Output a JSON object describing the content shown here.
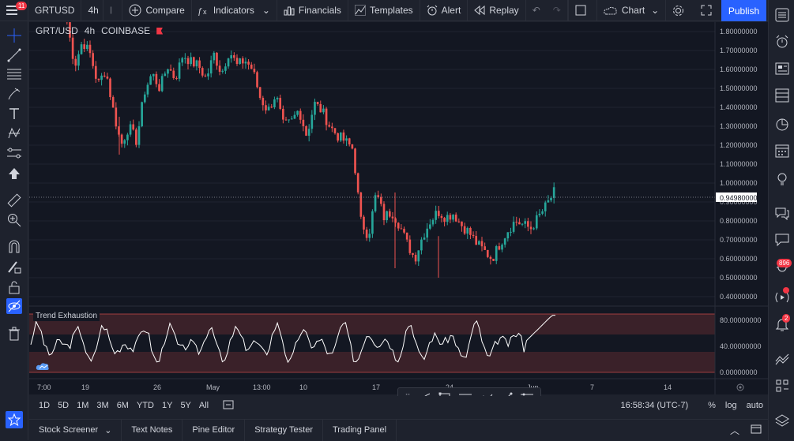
{
  "topbar": {
    "symbol": "GRTUSD",
    "interval": "4h",
    "compare_label": "Compare",
    "indicators_label": "Indicators",
    "financials_label": "Financials",
    "templates_label": "Templates",
    "alert_label": "Alert",
    "replay_label": "Replay",
    "layout_label": "Chart",
    "publish_label": "Publish",
    "menu_badge": "11"
  },
  "legend": {
    "pair": "GRT/USD",
    "interval": "4h",
    "exchange": "COINBASE"
  },
  "indicator": {
    "name": "Trend Exhaustion"
  },
  "price_axis": {
    "labels": [
      "1.80000000",
      "1.70000000",
      "1.60000000",
      "1.50000000",
      "1.40000000",
      "1.30000000",
      "1.20000000",
      "1.10000000",
      "1.00000000",
      "0.90000000",
      "0.80000000",
      "0.70000000",
      "0.60000000",
      "0.50000000",
      "0.40000000"
    ],
    "current_price": "0.94980000"
  },
  "indicator_axis": {
    "labels": [
      "80.00000000",
      "40.00000000",
      "0.00000000"
    ]
  },
  "time_axis": {
    "labels": [
      "7:00",
      "19",
      "26",
      "May",
      "13:00",
      "10",
      "17",
      "24",
      "Jun",
      "7",
      "14"
    ]
  },
  "bottombar": {
    "ranges": [
      "1D",
      "5D",
      "1M",
      "3M",
      "6M",
      "YTD",
      "1Y",
      "5Y",
      "All"
    ],
    "clock": "16:58:34 (UTC-7)",
    "pct": "%",
    "log": "log",
    "auto": "auto"
  },
  "panels": {
    "stock_screener": "Stock Screener",
    "text_notes": "Text Notes",
    "pine_editor": "Pine Editor",
    "strategy_tester": "Strategy Tester",
    "trading_panel": "Trading Panel"
  },
  "rightbar": {
    "badge_ideas": "896",
    "badge_notifications": "2"
  },
  "colors": {
    "up": "#26a69a",
    "down": "#ef5350",
    "accent": "#2962ff",
    "background": "#131722"
  },
  "chart_data": {
    "type": "candlestick",
    "title": "GRT/USD",
    "price_range": [
      0.35,
      1.85
    ],
    "price_path": [
      1.85,
      1.62,
      1.75,
      1.68,
      1.52,
      1.6,
      1.38,
      1.2,
      1.3,
      1.22,
      1.48,
      1.58,
      1.5,
      1.62,
      1.55,
      1.68,
      1.64,
      1.62,
      1.55,
      1.68,
      1.58,
      1.7,
      1.62,
      1.65,
      1.6,
      1.45,
      1.38,
      1.47,
      1.3,
      1.32,
      1.39,
      1.25,
      1.42,
      1.38,
      1.3,
      1.25,
      1.22,
      1.18,
      0.8,
      0.72,
      0.95,
      0.82,
      0.85,
      0.78,
      0.68,
      0.6,
      0.72,
      0.8,
      0.85,
      0.82,
      0.84,
      0.78,
      0.74,
      0.68,
      0.64,
      0.6,
      0.68,
      0.75,
      0.8,
      0.78,
      0.76,
      0.82,
      0.88,
      0.95
    ],
    "indicator_range": [
      0,
      90
    ],
    "indicator_bands": [
      [
        60,
        90
      ],
      [
        0,
        30
      ]
    ]
  }
}
